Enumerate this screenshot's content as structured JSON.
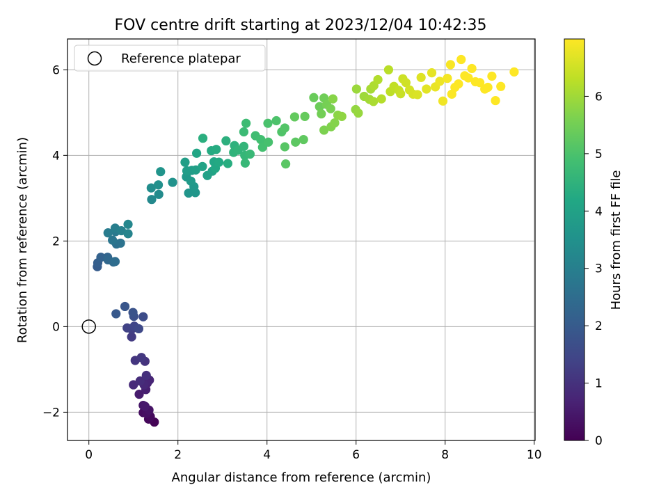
{
  "chart_data": {
    "type": "scatter",
    "title": "FOV centre drift starting at 2023/12/04 10:42:35",
    "xlabel": "Angular distance from reference (arcmin)",
    "ylabel": "Rotation from reference (arcmin)",
    "xlim": [
      -0.48,
      10.02
    ],
    "ylim": [
      -2.66,
      6.72
    ],
    "x_ticks": [
      0,
      2,
      4,
      6,
      8,
      10
    ],
    "x_tick_labels": [
      "0",
      "2",
      "4",
      "6",
      "8",
      "10"
    ],
    "y_ticks": [
      -2,
      0,
      2,
      4,
      6
    ],
    "y_tick_labels": [
      "−2",
      "0",
      "2",
      "4",
      "6"
    ],
    "grid": true,
    "legend": {
      "placement": "upper-left",
      "entries": [
        "Reference platepar"
      ]
    },
    "reference": {
      "label": "Reference platepar",
      "x": 0,
      "y": 0
    },
    "colorbar": {
      "label": "Hours from first FF file",
      "range": [
        0,
        7.0
      ],
      "ticks": [
        0,
        1,
        2,
        3,
        4,
        5,
        6
      ],
      "tick_labels": [
        "0",
        "1",
        "2",
        "3",
        "4",
        "5",
        "6"
      ],
      "colormap": "viridis"
    },
    "points": [
      [
        1.47,
        -2.23,
        0.05
      ],
      [
        1.34,
        -2.16,
        0.12
      ],
      [
        1.38,
        -2.1,
        0.18
      ],
      [
        1.22,
        -2.01,
        0.24
      ],
      [
        1.3,
        -2.02,
        0.3
      ],
      [
        1.35,
        -1.95,
        0.36
      ],
      [
        1.22,
        -1.84,
        0.42
      ],
      [
        1.26,
        -1.86,
        0.48
      ],
      [
        1.13,
        -1.58,
        0.54
      ],
      [
        1.28,
        -1.47,
        0.6
      ],
      [
        1.31,
        -1.32,
        0.66
      ],
      [
        1.36,
        -1.25,
        0.72
      ],
      [
        1.24,
        -1.36,
        0.78
      ],
      [
        1.0,
        -1.36,
        0.84
      ],
      [
        1.15,
        -1.27,
        0.9
      ],
      [
        1.29,
        -1.14,
        0.96
      ],
      [
        1.26,
        -0.81,
        1.02
      ],
      [
        1.04,
        -0.79,
        1.08
      ],
      [
        1.18,
        -0.72,
        1.14
      ],
      [
        0.96,
        -0.24,
        1.2
      ],
      [
        0.96,
        -0.06,
        1.3
      ],
      [
        0.86,
        -0.03,
        1.38
      ],
      [
        1.02,
        0.01,
        1.46
      ],
      [
        1.12,
        -0.05,
        1.54
      ],
      [
        1.22,
        0.23,
        1.62
      ],
      [
        1.01,
        0.24,
        1.7
      ],
      [
        0.99,
        0.33,
        1.78
      ],
      [
        0.81,
        0.47,
        1.86
      ],
      [
        0.61,
        0.3,
        1.94
      ],
      [
        0.19,
        1.4,
        2.02
      ],
      [
        0.2,
        1.49,
        2.1
      ],
      [
        0.27,
        1.62,
        2.18
      ],
      [
        0.42,
        1.62,
        2.26
      ],
      [
        0.43,
        1.56,
        2.34
      ],
      [
        0.55,
        1.51,
        2.42
      ],
      [
        0.59,
        1.52,
        2.5
      ],
      [
        0.62,
        1.93,
        2.58
      ],
      [
        0.71,
        1.95,
        2.66
      ],
      [
        0.53,
        2.02,
        2.74
      ],
      [
        0.6,
        2.22,
        2.82
      ],
      [
        0.43,
        2.19,
        2.9
      ],
      [
        0.59,
        2.3,
        2.98
      ],
      [
        0.73,
        2.24,
        3.06
      ],
      [
        0.88,
        2.17,
        3.14
      ],
      [
        0.88,
        2.39,
        3.22
      ],
      [
        1.41,
        2.97,
        3.28
      ],
      [
        1.57,
        3.09,
        3.34
      ],
      [
        1.4,
        3.24,
        3.4
      ],
      [
        1.56,
        3.31,
        3.46
      ],
      [
        1.88,
        3.37,
        3.52
      ],
      [
        1.61,
        3.62,
        3.58
      ],
      [
        2.24,
        3.12,
        3.62
      ],
      [
        2.39,
        3.13,
        3.66
      ],
      [
        2.36,
        3.27,
        3.7
      ],
      [
        2.19,
        3.5,
        3.74
      ],
      [
        2.29,
        3.4,
        3.78
      ],
      [
        2.31,
        3.65,
        3.82
      ],
      [
        2.2,
        3.64,
        3.86
      ],
      [
        2.16,
        3.84,
        3.9
      ],
      [
        2.4,
        3.66,
        3.94
      ],
      [
        2.66,
        3.53,
        3.98
      ],
      [
        2.77,
        3.63,
        4.02
      ],
      [
        2.55,
        3.74,
        4.06
      ],
      [
        2.42,
        4.05,
        4.1
      ],
      [
        2.81,
        3.85,
        4.14
      ],
      [
        2.84,
        3.7,
        4.18
      ],
      [
        2.92,
        3.84,
        4.22
      ],
      [
        2.75,
        4.11,
        4.26
      ],
      [
        2.86,
        4.14,
        4.3
      ],
      [
        3.12,
        3.81,
        4.34
      ],
      [
        2.56,
        4.4,
        4.38
      ],
      [
        3.08,
        4.34,
        4.42
      ],
      [
        3.27,
        4.23,
        4.46
      ],
      [
        3.25,
        4.07,
        4.5
      ],
      [
        3.35,
        4.12,
        4.54
      ],
      [
        3.48,
        4.21,
        4.58
      ],
      [
        3.5,
        4.0,
        4.62
      ],
      [
        3.51,
        3.82,
        4.66
      ],
      [
        3.62,
        4.03,
        4.7
      ],
      [
        3.48,
        4.55,
        4.74
      ],
      [
        3.53,
        4.75,
        4.78
      ],
      [
        3.74,
        4.46,
        4.82
      ],
      [
        3.86,
        4.37,
        4.86
      ],
      [
        3.9,
        4.19,
        4.9
      ],
      [
        4.03,
        4.31,
        4.94
      ],
      [
        4.02,
        4.75,
        4.98
      ],
      [
        4.21,
        4.81,
        5.02
      ],
      [
        4.33,
        4.55,
        5.06
      ],
      [
        4.4,
        4.64,
        5.1
      ],
      [
        4.4,
        4.2,
        5.14
      ],
      [
        4.42,
        3.8,
        5.18
      ],
      [
        4.64,
        4.31,
        5.22
      ],
      [
        4.82,
        4.37,
        5.26
      ],
      [
        4.62,
        4.9,
        5.3
      ],
      [
        4.85,
        4.91,
        5.34
      ],
      [
        5.05,
        5.35,
        5.38
      ],
      [
        5.18,
        5.14,
        5.42
      ],
      [
        5.28,
        5.34,
        5.46
      ],
      [
        5.22,
        4.97,
        5.5
      ],
      [
        5.34,
        5.19,
        5.54
      ],
      [
        5.43,
        5.09,
        5.58
      ],
      [
        5.28,
        4.59,
        5.62
      ],
      [
        5.44,
        4.67,
        5.66
      ],
      [
        5.52,
        4.76,
        5.7
      ],
      [
        5.48,
        5.32,
        5.74
      ],
      [
        5.59,
        4.94,
        5.78
      ],
      [
        5.68,
        4.91,
        5.82
      ],
      [
        5.99,
        5.07,
        5.86
      ],
      [
        6.05,
        4.99,
        5.9
      ],
      [
        6.01,
        5.55,
        5.94
      ],
      [
        6.18,
        5.38,
        5.98
      ],
      [
        6.3,
        5.31,
        6.02
      ],
      [
        6.33,
        5.55,
        6.06
      ],
      [
        6.39,
        5.26,
        6.1
      ],
      [
        6.4,
        5.63,
        6.14
      ],
      [
        6.49,
        5.77,
        6.18
      ],
      [
        6.57,
        5.32,
        6.22
      ],
      [
        6.73,
        6.0,
        6.26
      ],
      [
        6.77,
        5.49,
        6.3
      ],
      [
        6.85,
        5.61,
        6.34
      ],
      [
        6.96,
        5.52,
        6.38
      ],
      [
        7.0,
        5.44,
        6.42
      ],
      [
        7.05,
        5.79,
        6.46
      ],
      [
        7.12,
        5.7,
        6.5
      ],
      [
        7.2,
        5.53,
        6.54
      ],
      [
        7.28,
        5.43,
        6.58
      ],
      [
        7.38,
        5.42,
        6.62
      ],
      [
        7.46,
        5.82,
        6.66
      ],
      [
        7.58,
        5.55,
        6.7
      ],
      [
        7.7,
        5.93,
        6.74
      ],
      [
        7.78,
        5.6,
        6.78
      ],
      [
        7.88,
        5.73,
        6.82
      ],
      [
        7.95,
        5.27,
        6.86
      ],
      [
        8.05,
        5.8,
        6.9
      ],
      [
        8.12,
        6.12,
        6.94
      ],
      [
        8.15,
        5.43,
        6.98
      ],
      [
        8.22,
        5.59,
        7.0
      ],
      [
        8.3,
        5.67,
        7.02
      ],
      [
        8.36,
        6.24,
        7.04
      ],
      [
        8.44,
        5.86,
        7.06
      ],
      [
        8.52,
        5.81,
        7.08
      ],
      [
        8.6,
        6.03,
        7.1
      ],
      [
        8.68,
        5.72,
        7.12
      ],
      [
        8.78,
        5.7,
        7.14
      ],
      [
        8.89,
        5.55,
        7.16
      ],
      [
        8.96,
        5.59,
        7.18
      ],
      [
        9.05,
        5.85,
        7.2
      ],
      [
        9.13,
        5.28,
        7.22
      ],
      [
        9.25,
        5.61,
        7.24
      ],
      [
        9.55,
        5.95,
        7.3
      ]
    ]
  }
}
